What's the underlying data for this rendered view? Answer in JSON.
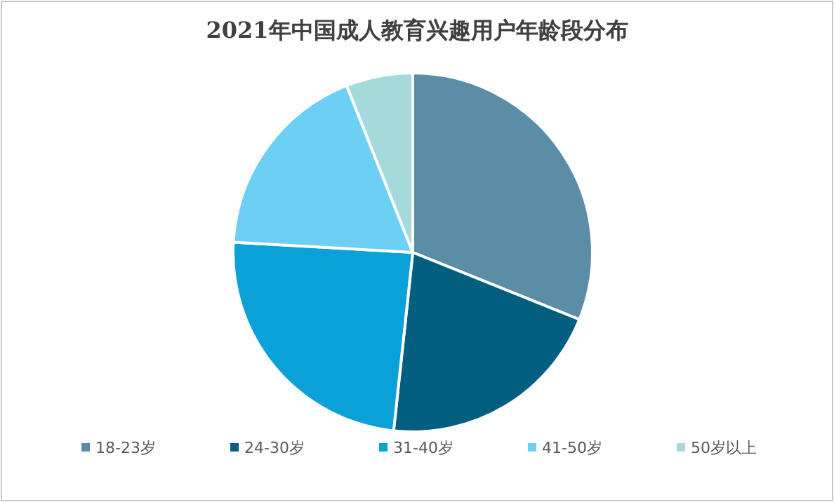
{
  "chart_data": {
    "type": "pie",
    "title": "2021年中国成人教育兴趣用户年龄段分布",
    "categories": [
      "18-23岁",
      "24-30岁",
      "31-40岁",
      "41-50岁",
      "50岁以上"
    ],
    "values": [
      31.1,
      20.6,
      24.2,
      18.1,
      6.0
    ],
    "colors": [
      "#5b8ea6",
      "#045e80",
      "#0aa0d8",
      "#6dcff4",
      "#a6d9dc"
    ],
    "legend": "bottom"
  }
}
